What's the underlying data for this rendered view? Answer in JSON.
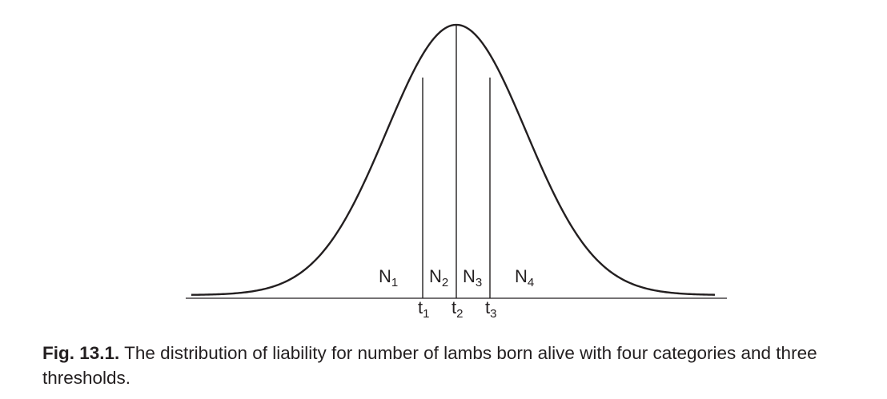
{
  "figure": {
    "regions": [
      {
        "letter": "N",
        "index": "1"
      },
      {
        "letter": "N",
        "index": "2"
      },
      {
        "letter": "N",
        "index": "3"
      },
      {
        "letter": "N",
        "index": "4"
      }
    ],
    "thresholds": [
      {
        "letter": "t",
        "index": "1"
      },
      {
        "letter": "t",
        "index": "2"
      },
      {
        "letter": "t",
        "index": "3"
      }
    ]
  },
  "caption": {
    "number": "Fig. 13.1.",
    "text": "The distribution of liability for number of lambs born alive with four categories and three thresholds."
  }
}
